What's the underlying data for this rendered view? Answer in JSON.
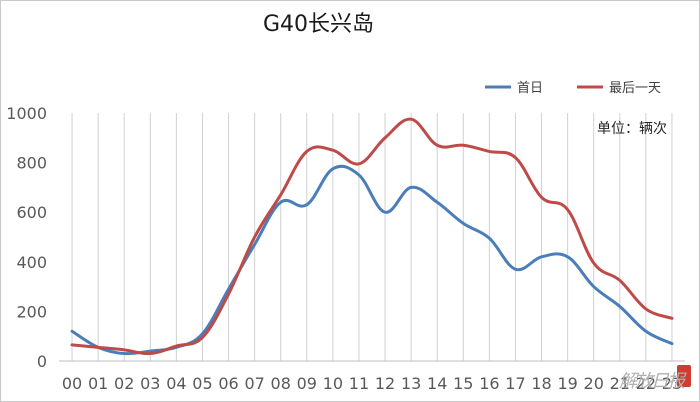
{
  "chart_data": {
    "type": "line",
    "title": "G40长兴岛",
    "unit_note": "单位：辆次",
    "categories": [
      "00",
      "01",
      "02",
      "03",
      "04",
      "05",
      "06",
      "07",
      "08",
      "09",
      "10",
      "11",
      "12",
      "13",
      "14",
      "15",
      "16",
      "17",
      "18",
      "19",
      "20",
      "21",
      "22",
      "23"
    ],
    "ylim": [
      0,
      1000
    ],
    "yticks": [
      0,
      200,
      400,
      600,
      800,
      1000
    ],
    "grid": "vertical",
    "legend_position": "top-right",
    "series": [
      {
        "name": "首日",
        "color": "#4a7ebb",
        "values": [
          120,
          55,
          30,
          40,
          55,
          110,
          290,
          470,
          640,
          630,
          775,
          750,
          600,
          700,
          640,
          555,
          495,
          370,
          420,
          420,
          300,
          220,
          120,
          70
        ]
      },
      {
        "name": "最后一天",
        "color": "#be4b48",
        "values": [
          65,
          55,
          45,
          30,
          60,
          95,
          270,
          500,
          670,
          845,
          850,
          795,
          900,
          975,
          870,
          870,
          845,
          820,
          660,
          610,
          395,
          325,
          210,
          172
        ]
      }
    ]
  },
  "watermark": "解放日报"
}
